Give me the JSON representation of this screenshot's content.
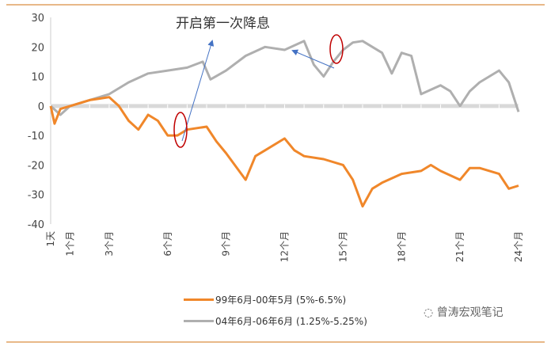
{
  "chart_data": {
    "type": "line",
    "annotation": "开启第一次降息",
    "ylim": [
      -40,
      30
    ],
    "yticks": [
      30,
      20,
      10,
      0,
      -10,
      -20,
      -30,
      -40
    ],
    "xlim": [
      0,
      24
    ],
    "xticks": [
      {
        "label": "1天",
        "m": 0
      },
      {
        "label": "1个月",
        "m": 1
      },
      {
        "label": "3个月",
        "m": 3
      },
      {
        "label": "6个月",
        "m": 6
      },
      {
        "label": "9个月",
        "m": 9
      },
      {
        "label": "12个月",
        "m": 12
      },
      {
        "label": "15个月",
        "m": 15
      },
      {
        "label": "18个月",
        "m": 18
      },
      {
        "label": "21个月",
        "m": 21
      },
      {
        "label": "24个月",
        "m": 24
      }
    ],
    "legend_position": "bottom",
    "series": [
      {
        "name": "99年6月-00年5月 (5%-6.5%)",
        "color": "#F0872A",
        "x": [
          0,
          0.2,
          0.5,
          1,
          2,
          3,
          3.5,
          4,
          4.5,
          5,
          5.5,
          6,
          6.5,
          7,
          8,
          8.5,
          9,
          10,
          10.5,
          11,
          12,
          12.5,
          13,
          14,
          15,
          15.5,
          16,
          16.5,
          17,
          18,
          19,
          19.5,
          20,
          21,
          21.5,
          22,
          23,
          23.5,
          24
        ],
        "y": [
          0,
          -6,
          -1,
          0,
          2,
          3,
          0,
          -5,
          -8,
          -3,
          -5,
          -10,
          -10,
          -8,
          -7,
          -12,
          -16,
          -25,
          -17,
          -15,
          -11,
          -15,
          -17,
          -18,
          -20,
          -25,
          -34,
          -28,
          -26,
          -23,
          -22,
          -20,
          -22,
          -25,
          -21,
          -21,
          -23,
          -28,
          -27
        ]
      },
      {
        "name": "04年6月-06年6月 (1.25%-5.25%)",
        "color": "#AFAFAF",
        "x": [
          0,
          0.5,
          1,
          2,
          3,
          4,
          5,
          6,
          7,
          7.8,
          8.2,
          9,
          10,
          11,
          12,
          13,
          13.5,
          14,
          14.5,
          15,
          15.5,
          16,
          17,
          17.5,
          18,
          18.5,
          19,
          20,
          20.5,
          21,
          21.5,
          22,
          23,
          23.5,
          24
        ],
        "y": [
          0,
          -3,
          0,
          2,
          4,
          8,
          11,
          12,
          13,
          15,
          9,
          12,
          17,
          20,
          19,
          22,
          14,
          10,
          15,
          19,
          21.5,
          22,
          18,
          11,
          18,
          17,
          4,
          7,
          5,
          0,
          5,
          8,
          12,
          8,
          -2
        ]
      }
    ]
  },
  "watermark": "曾涛宏观笔记"
}
